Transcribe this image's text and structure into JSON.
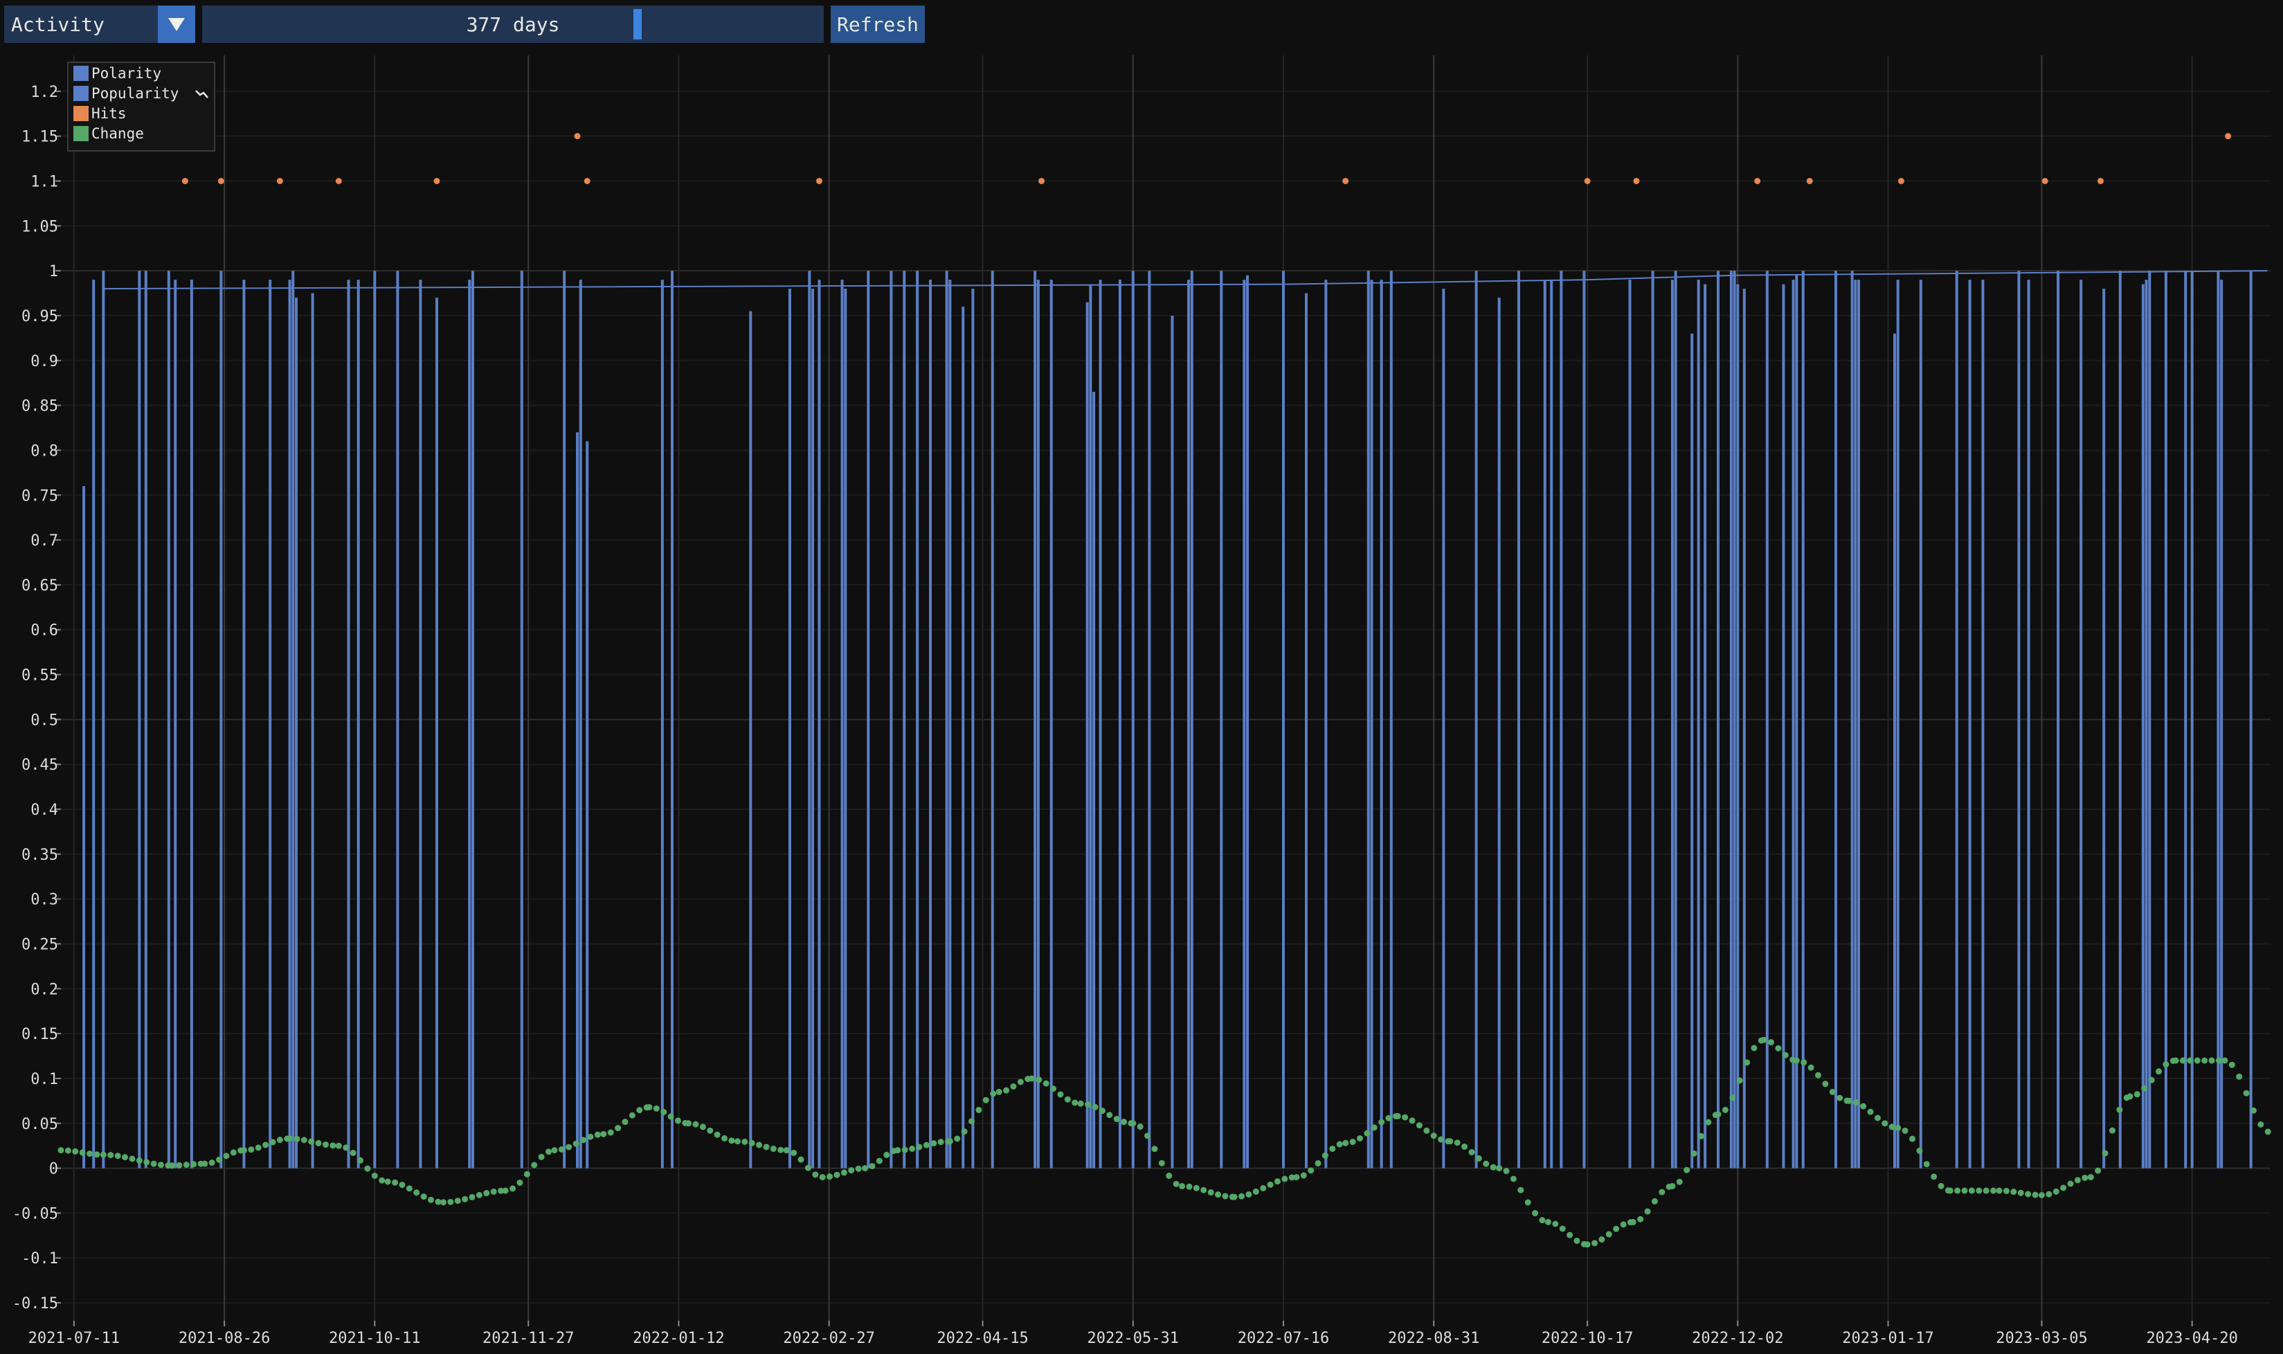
{
  "toolbar": {
    "combo_value": "Activity",
    "combo_icon": "triangle-down-icon",
    "slider_value": "377 days",
    "slider_fraction": 0.7,
    "refresh_label": "Refresh"
  },
  "colors": {
    "bars": "#5b7fc6",
    "popularity": "#5b7fc6",
    "hits": "#e8894f",
    "change": "#55a868",
    "grid": "#222222",
    "axis": "#3a3a3a"
  },
  "chart_data": {
    "type": "bar",
    "xlabel": "",
    "ylabel": "",
    "grid": true,
    "legend_position": "top-left",
    "xlim": [
      "2021-07-07",
      "2023-05-14"
    ],
    "ylim": [
      -0.17,
      1.24
    ],
    "x_ticks": [
      "2021-07-11",
      "2021-08-26",
      "2021-10-11",
      "2021-11-27",
      "2022-01-12",
      "2022-02-27",
      "2022-04-15",
      "2022-05-31",
      "2022-07-16",
      "2022-08-31",
      "2022-10-17",
      "2022-12-02",
      "2023-01-17",
      "2023-03-05",
      "2023-04-20"
    ],
    "y_ticks": [
      "1.2",
      "1.15",
      "1.1",
      "1.05",
      "1",
      "0.95",
      "0.9",
      "0.85",
      "0.8",
      "0.75",
      "0.7",
      "0.65",
      "0.6",
      "0.55",
      "0.5",
      "0.45",
      "0.4",
      "0.35",
      "0.3",
      "0.25",
      "0.2",
      "0.15",
      "0.1",
      "0.05",
      "0",
      "-0.05",
      "-0.1",
      "-0.15"
    ],
    "legend": [
      {
        "name": "Polarity",
        "color": "#5b7fc6"
      },
      {
        "name": "Popularity",
        "color": "#5b7fc6",
        "icon": "trend-line-icon"
      },
      {
        "name": "Hits",
        "color": "#e8894f"
      },
      {
        "name": "Change",
        "color": "#55a868"
      }
    ],
    "series": [
      {
        "name": "Polarity",
        "kind": "bar",
        "points": [
          [
            "2021-07-14",
            0.76
          ],
          [
            "2021-07-17",
            0.99
          ],
          [
            "2021-07-20",
            1.0
          ],
          [
            "2021-07-31",
            1.0
          ],
          [
            "2021-08-02",
            1.0
          ],
          [
            "2021-08-09",
            1.0
          ],
          [
            "2021-08-11",
            0.99
          ],
          [
            "2021-08-16",
            0.99
          ],
          [
            "2021-08-25",
            1.0
          ],
          [
            "2021-09-01",
            0.99
          ],
          [
            "2021-09-09",
            0.99
          ],
          [
            "2021-09-15",
            0.99
          ],
          [
            "2021-09-16",
            1.0
          ],
          [
            "2021-09-17",
            0.97
          ],
          [
            "2021-09-22",
            0.975
          ],
          [
            "2021-10-03",
            0.99
          ],
          [
            "2021-10-06",
            0.99
          ],
          [
            "2021-10-11",
            1.0
          ],
          [
            "2021-10-18",
            1.0
          ],
          [
            "2021-10-25",
            0.99
          ],
          [
            "2021-10-30",
            0.97
          ],
          [
            "2021-11-09",
            0.99
          ],
          [
            "2021-11-10",
            1.0
          ],
          [
            "2021-11-25",
            1.0
          ],
          [
            "2021-12-08",
            1.0
          ],
          [
            "2021-12-12",
            0.82
          ],
          [
            "2021-12-13",
            0.99
          ],
          [
            "2021-12-15",
            0.81
          ],
          [
            "2022-01-07",
            0.99
          ],
          [
            "2022-01-10",
            1.0
          ],
          [
            "2022-02-03",
            0.955
          ],
          [
            "2022-02-15",
            0.98
          ],
          [
            "2022-02-21",
            1.0
          ],
          [
            "2022-02-22",
            0.98
          ],
          [
            "2022-02-24",
            0.99
          ],
          [
            "2022-03-03",
            0.99
          ],
          [
            "2022-03-04",
            0.98
          ],
          [
            "2022-03-11",
            1.0
          ],
          [
            "2022-03-18",
            1.0
          ],
          [
            "2022-03-22",
            1.0
          ],
          [
            "2022-03-26",
            1.0
          ],
          [
            "2022-03-30",
            0.99
          ],
          [
            "2022-04-04",
            1.0
          ],
          [
            "2022-04-05",
            0.99
          ],
          [
            "2022-04-09",
            0.96
          ],
          [
            "2022-04-12",
            0.98
          ],
          [
            "2022-04-18",
            1.0
          ],
          [
            "2022-05-01",
            1.0
          ],
          [
            "2022-05-02",
            0.99
          ],
          [
            "2022-05-06",
            0.99
          ],
          [
            "2022-05-17",
            0.965
          ],
          [
            "2022-05-18",
            0.985
          ],
          [
            "2022-05-19",
            0.865
          ],
          [
            "2022-05-21",
            0.99
          ],
          [
            "2022-05-27",
            0.99
          ],
          [
            "2022-05-31",
            1.0
          ],
          [
            "2022-06-05",
            1.0
          ],
          [
            "2022-06-12",
            0.95
          ],
          [
            "2022-06-17",
            0.99
          ],
          [
            "2022-06-18",
            1.0
          ],
          [
            "2022-06-27",
            1.0
          ],
          [
            "2022-07-04",
            0.99
          ],
          [
            "2022-07-05",
            0.995
          ],
          [
            "2022-07-16",
            1.0
          ],
          [
            "2022-07-23",
            0.975
          ],
          [
            "2022-07-29",
            0.99
          ],
          [
            "2022-08-11",
            1.0
          ],
          [
            "2022-08-12",
            0.99
          ],
          [
            "2022-08-15",
            0.99
          ],
          [
            "2022-08-18",
            1.0
          ],
          [
            "2022-09-03",
            0.98
          ],
          [
            "2022-09-13",
            1.0
          ],
          [
            "2022-09-20",
            0.97
          ],
          [
            "2022-09-26",
            1.0
          ],
          [
            "2022-10-04",
            0.99
          ],
          [
            "2022-10-06",
            0.99
          ],
          [
            "2022-10-09",
            1.0
          ],
          [
            "2022-10-16",
            1.0
          ],
          [
            "2022-10-30",
            0.99
          ],
          [
            "2022-11-06",
            1.0
          ],
          [
            "2022-11-12",
            0.99
          ],
          [
            "2022-11-13",
            1.0
          ],
          [
            "2022-11-18",
            0.93
          ],
          [
            "2022-11-20",
            0.99
          ],
          [
            "2022-11-22",
            0.985
          ],
          [
            "2022-11-26",
            1.0
          ],
          [
            "2022-11-30",
            1.0
          ],
          [
            "2022-12-01",
            1.0
          ],
          [
            "2022-12-02",
            0.985
          ],
          [
            "2022-12-04",
            0.98
          ],
          [
            "2022-12-11",
            1.0
          ],
          [
            "2022-12-16",
            0.985
          ],
          [
            "2022-12-19",
            0.99
          ],
          [
            "2022-12-20",
            0.995
          ],
          [
            "2022-12-22",
            1.0
          ],
          [
            "2023-01-01",
            1.0
          ],
          [
            "2023-01-06",
            1.0
          ],
          [
            "2023-01-07",
            0.99
          ],
          [
            "2023-01-08",
            0.99
          ],
          [
            "2023-01-19",
            0.93
          ],
          [
            "2023-01-20",
            0.99
          ],
          [
            "2023-01-27",
            0.99
          ],
          [
            "2023-02-07",
            1.0
          ],
          [
            "2023-02-11",
            0.99
          ],
          [
            "2023-02-15",
            0.99
          ],
          [
            "2023-02-26",
            1.0
          ],
          [
            "2023-03-01",
            0.99
          ],
          [
            "2023-03-10",
            1.0
          ],
          [
            "2023-03-17",
            0.99
          ],
          [
            "2023-03-24",
            0.98
          ],
          [
            "2023-03-29",
            1.0
          ],
          [
            "2023-04-05",
            0.985
          ],
          [
            "2023-04-06",
            0.99
          ],
          [
            "2023-04-07",
            1.0
          ],
          [
            "2023-04-12",
            1.0
          ],
          [
            "2023-04-18",
            1.0
          ],
          [
            "2023-04-20",
            1.0
          ],
          [
            "2023-04-28",
            1.0
          ],
          [
            "2023-04-29",
            0.99
          ],
          [
            "2023-05-08",
            1.0
          ]
        ]
      },
      {
        "name": "Popularity",
        "kind": "line",
        "points": [
          [
            "2021-07-20",
            0.98
          ],
          [
            "2022-07-16",
            0.985
          ],
          [
            "2022-10-17",
            0.99
          ],
          [
            "2022-12-02",
            0.995
          ],
          [
            "2023-05-13",
            1.0
          ]
        ]
      },
      {
        "name": "Hits",
        "kind": "scatter",
        "points": [
          [
            "2021-08-14",
            1.1
          ],
          [
            "2021-08-25",
            1.1
          ],
          [
            "2021-09-12",
            1.1
          ],
          [
            "2021-09-30",
            1.1
          ],
          [
            "2021-10-30",
            1.1
          ],
          [
            "2021-12-12",
            1.15
          ],
          [
            "2021-12-15",
            1.1
          ],
          [
            "2022-02-24",
            1.1
          ],
          [
            "2022-05-03",
            1.1
          ],
          [
            "2022-08-04",
            1.1
          ],
          [
            "2022-10-17",
            1.1
          ],
          [
            "2022-11-01",
            1.1
          ],
          [
            "2022-12-08",
            1.1
          ],
          [
            "2022-12-24",
            1.1
          ],
          [
            "2023-01-21",
            1.1
          ],
          [
            "2023-03-06",
            1.1
          ],
          [
            "2023-03-23",
            1.1
          ],
          [
            "2023-05-01",
            1.15
          ]
        ]
      },
      {
        "name": "Change",
        "kind": "scatter",
        "points": [
          [
            "2021-07-07",
            0.02
          ],
          [
            "2021-07-20",
            0.015
          ],
          [
            "2021-08-10",
            0.003
          ],
          [
            "2021-08-20",
            0.005
          ],
          [
            "2021-09-01",
            0.02
          ],
          [
            "2021-09-15",
            0.033
          ],
          [
            "2021-09-30",
            0.025
          ],
          [
            "2021-10-15",
            -0.015
          ],
          [
            "2021-11-01",
            -0.038
          ],
          [
            "2021-11-20",
            -0.025
          ],
          [
            "2021-12-05",
            0.02
          ],
          [
            "2021-12-20",
            0.038
          ],
          [
            "2022-01-03",
            0.068
          ],
          [
            "2022-01-15",
            0.05
          ],
          [
            "2022-01-30",
            0.03
          ],
          [
            "2022-02-14",
            0.02
          ],
          [
            "2022-02-25",
            -0.01
          ],
          [
            "2022-03-10",
            0.0
          ],
          [
            "2022-03-20",
            0.02
          ],
          [
            "2022-04-05",
            0.03
          ],
          [
            "2022-04-20",
            0.085
          ],
          [
            "2022-04-30",
            0.1
          ],
          [
            "2022-05-15",
            0.072
          ],
          [
            "2022-05-31",
            0.05
          ],
          [
            "2022-06-15",
            -0.02
          ],
          [
            "2022-07-01",
            -0.032
          ],
          [
            "2022-07-20",
            -0.01
          ],
          [
            "2022-08-04",
            0.028
          ],
          [
            "2022-08-20",
            0.058
          ],
          [
            "2022-09-05",
            0.03
          ],
          [
            "2022-09-20",
            0.0
          ],
          [
            "2022-10-05",
            -0.06
          ],
          [
            "2022-10-17",
            -0.085
          ],
          [
            "2022-10-31",
            -0.06
          ],
          [
            "2022-11-12",
            -0.02
          ],
          [
            "2022-11-26",
            0.06
          ],
          [
            "2022-12-10",
            0.143
          ],
          [
            "2022-12-20",
            0.12
          ],
          [
            "2023-01-05",
            0.075
          ],
          [
            "2023-01-20",
            0.045
          ],
          [
            "2023-02-05",
            -0.025
          ],
          [
            "2023-02-20",
            -0.025
          ],
          [
            "2023-03-05",
            -0.03
          ],
          [
            "2023-03-20",
            -0.01
          ],
          [
            "2023-04-01",
            0.08
          ],
          [
            "2023-04-15",
            0.12
          ],
          [
            "2023-04-30",
            0.12
          ],
          [
            "2023-05-14",
            0.04
          ]
        ]
      }
    ]
  }
}
